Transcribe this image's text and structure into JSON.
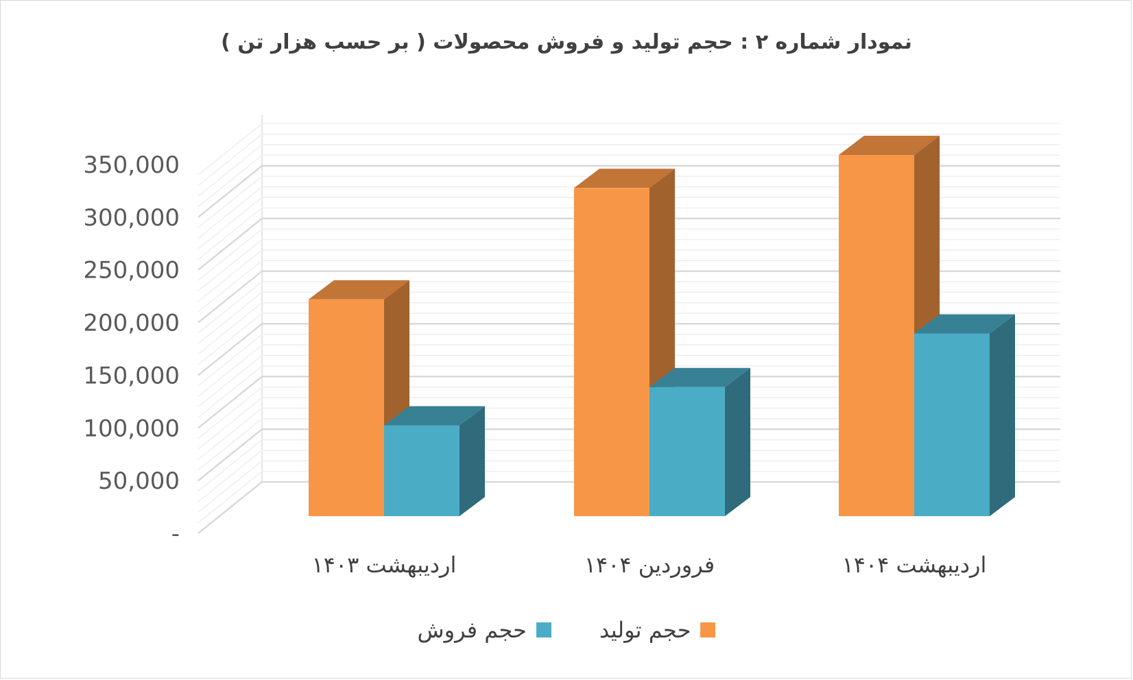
{
  "chart_data": {
    "type": "bar",
    "title": "نمودار شماره ۲ : حجم  تولید و فروش محصولات ( بر حسب هزار تن )",
    "categories": [
      "اردیبهشت ۱۴۰۳",
      "فروردین ۱۴۰۴",
      "اردیبهشت ۱۴۰۴"
    ],
    "series": [
      {
        "name": "حجم تولید",
        "values": [
          210000,
          318000,
          350000
        ],
        "color": "#F79646"
      },
      {
        "name": "حجم فروش",
        "values": [
          88000,
          125000,
          177000
        ],
        "color": "#4BACC6"
      }
    ],
    "yticks": [
      "-",
      "50,000",
      "100,000",
      "150,000",
      "200,000",
      "250,000",
      "300,000",
      "350,000"
    ],
    "ylim": [
      0,
      350000
    ],
    "grid": true,
    "legend": "bottom"
  }
}
